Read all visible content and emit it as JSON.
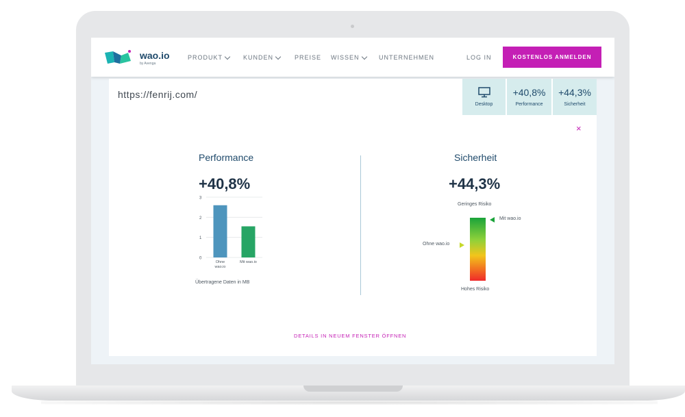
{
  "brand": {
    "name": "wao.io",
    "sub": "by Avenga"
  },
  "nav": {
    "items": [
      {
        "label": "PRODUKT"
      },
      {
        "label": "KUNDEN"
      },
      {
        "label": "PREISE"
      },
      {
        "label": "WISSEN"
      },
      {
        "label": "UNTERNEHMEN"
      }
    ],
    "login": "LOG IN",
    "cta": "KOSTENLOS ANMELDEN"
  },
  "panel": {
    "url": "https://fenrij.com/",
    "tabs": [
      {
        "icon": "desktop-icon",
        "label": "Desktop"
      },
      {
        "value": "+40,8%",
        "label": "Performance"
      },
      {
        "value": "+44,3%",
        "label": "Sicherheit"
      }
    ],
    "close": "×",
    "performance": {
      "title": "Performance",
      "value": "+40,8%",
      "caption": "Übertragene Daten in MB"
    },
    "security": {
      "title": "Sicherheit",
      "value": "+44,3%",
      "low_risk": "Geringes Risiko",
      "high_risk": "Hohes Risiko",
      "with_label": "Mit wao.io",
      "without_label": "Ohne wao.io",
      "with_level": 1.0,
      "without_level": 0.56
    },
    "details_link": "DETAILS IN NEUEM FENSTER ÖFFNEN"
  },
  "chart_data": {
    "type": "bar",
    "categories": [
      "Ohne wao.io",
      "Mit wao.io"
    ],
    "values": [
      2.6,
      1.55
    ],
    "xlabel": "Übertragene Daten in MB",
    "ylabel": "",
    "ylim": [
      0,
      3
    ],
    "yticks": [
      "0",
      "1",
      "2",
      "3"
    ],
    "colors": [
      "#4e95bd",
      "#27a565"
    ],
    "grid": true
  },
  "colors": {
    "accent": "#c41fb5",
    "primary": "#1f4a6b",
    "tab_bg": "#d6eced"
  }
}
